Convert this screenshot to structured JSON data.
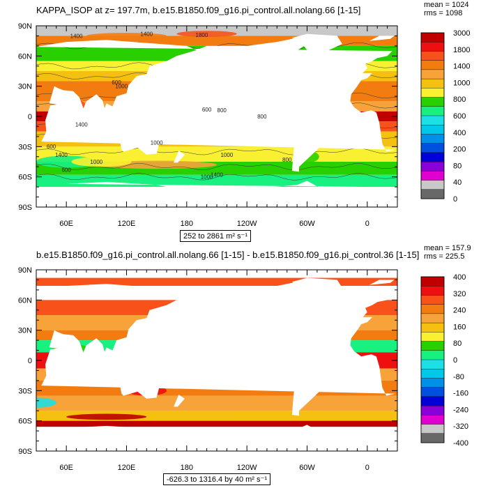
{
  "panels": [
    {
      "title": "KAPPA_ISOP at z= 197.7m, b.e15.B1850.f09_g16.pi_control.all.nolang.66 [1-15]",
      "mean_label": "mean = 1024",
      "rms_label": "rms = 1098",
      "range_label": "252 to 2861 m² s⁻¹",
      "colorbar": {
        "labels": [
          "3000",
          "1800",
          "1400",
          "1000",
          "800",
          "600",
          "400",
          "200",
          "80",
          "40",
          "0"
        ],
        "colors": [
          "#c00000",
          "#ee1010",
          "#f8521a",
          "#f27c10",
          "#f8a23a",
          "#f6c010",
          "#f8f030",
          "#28d000",
          "#18f080",
          "#1de0e6",
          "#00c8e8",
          "#0090e8",
          "#0050e0",
          "#0000d8",
          "#8a00d8",
          "#e000d0",
          "#c8c8c8",
          "#686868"
        ]
      },
      "chart_data": {
        "type": "heatmap",
        "title": "KAPPA_ISOP at z= 197.7m, b.e15.B1850.f09_g16.pi_control.all.nolang.66 [1-15]",
        "units": "m² s⁻¹",
        "mean": 1024,
        "rms": 1098,
        "min": 252,
        "max": 2861,
        "levels": [
          0,
          40,
          80,
          200,
          400,
          600,
          800,
          1000,
          1400,
          1800,
          3000
        ],
        "contour_labels": [
          "1400",
          "1800",
          "1400",
          "1000",
          "600",
          "1000",
          "1400",
          "600",
          "1400",
          "600",
          "800",
          "1000",
          "1000",
          "800",
          "600",
          "800",
          "1400",
          "1000"
        ],
        "xticks": [
          "60E",
          "120E",
          "180",
          "120W",
          "60W",
          "0"
        ],
        "yticks": [
          "90N",
          "60N",
          "30N",
          "0",
          "30S",
          "60S",
          "90S"
        ]
      }
    },
    {
      "title": "b.e15.B1850.f09_g16.pi_control.all.nolang.66 [1-15] - b.e15.B1850.f09_g16.pi_control.36 [1-15]",
      "mean_label": "mean = 157.9",
      "rms_label": "rms = 225.5",
      "range_label": "-626.3 to 1316.4 by 40 m² s⁻¹",
      "colorbar": {
        "labels": [
          "400",
          "320",
          "240",
          "160",
          "80",
          "0",
          "-80",
          "-160",
          "-240",
          "-320",
          "-400"
        ],
        "colors": [
          "#c00000",
          "#ee1010",
          "#f8521a",
          "#f27c10",
          "#f8a23a",
          "#f6c010",
          "#f8f030",
          "#28d000",
          "#18f080",
          "#1de0e6",
          "#00c8e8",
          "#0090e8",
          "#0050e0",
          "#0000d8",
          "#8a00d8",
          "#e000d0",
          "#c8c8c8",
          "#686868"
        ]
      },
      "chart_data": {
        "type": "heatmap",
        "title": "b.e15.B1850.f09_g16.pi_control.all.nolang.66 [1-15] - b.e15.B1850.f09_g16.pi_control.36 [1-15]",
        "units": "m² s⁻¹",
        "mean": 157.9,
        "rms": 225.5,
        "min": -626.3,
        "max": 1316.4,
        "contour_interval": 40,
        "levels": [
          -400,
          -320,
          -240,
          -160,
          -80,
          0,
          80,
          160,
          240,
          320,
          400
        ],
        "xticks": [
          "60E",
          "120E",
          "180",
          "120W",
          "60W",
          "0"
        ],
        "yticks": [
          "90N",
          "60N",
          "30N",
          "0",
          "30S",
          "60S",
          "90S"
        ]
      }
    }
  ]
}
